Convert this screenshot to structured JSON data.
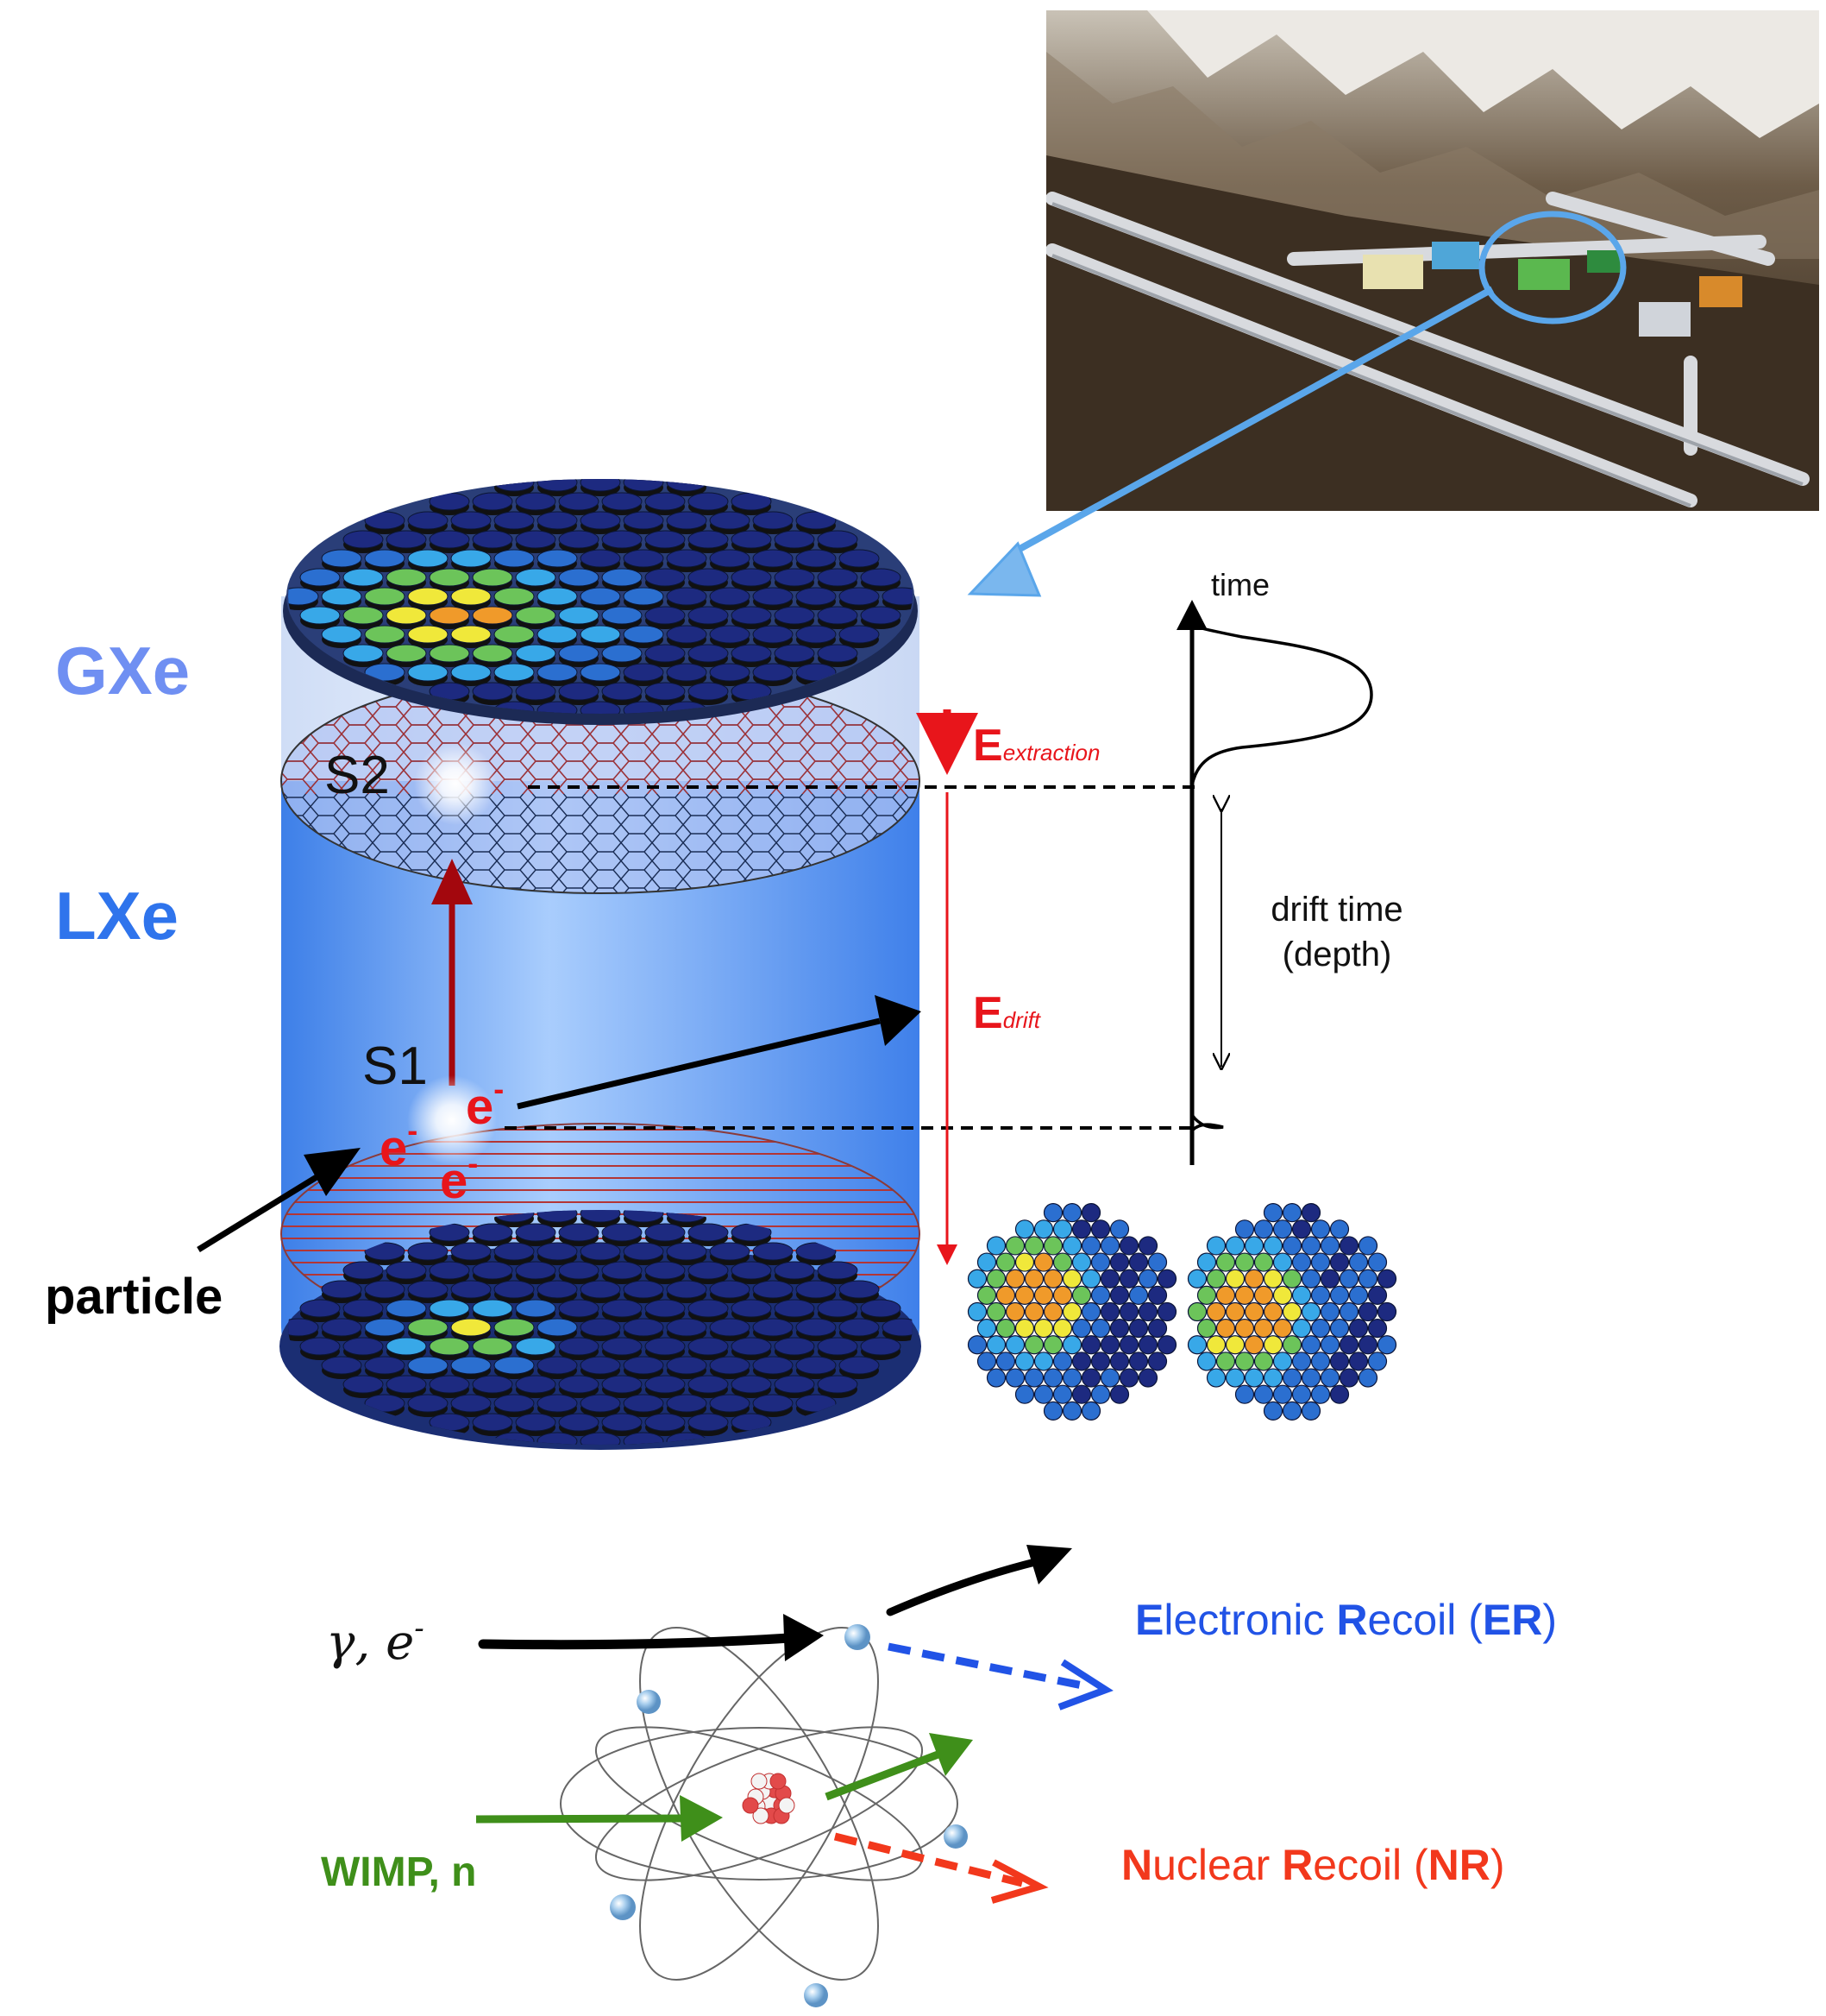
{
  "labels": {
    "gxe": "GXe",
    "lxe": "LXe",
    "s2": "S2",
    "s1": "S1",
    "electron": "e",
    "electron_charge": "-",
    "particle": "particle",
    "e_extraction_main": "E",
    "e_extraction_sub": "extraction",
    "e_drift_main": "E",
    "e_drift_sub": "drift",
    "time_axis": "time",
    "drift_time_line1": "drift time",
    "drift_time_line2": "(depth)"
  },
  "interactions": {
    "incoming_er": "γ, e",
    "incoming_er_sup": "-",
    "incoming_nr": "WIMP, n",
    "er_parts": [
      {
        "t": "E",
        "b": true
      },
      {
        "t": "lectronic ",
        "b": false
      },
      {
        "t": "R",
        "b": true
      },
      {
        "t": "ecoil (",
        "b": false
      },
      {
        "t": "ER",
        "b": true
      },
      {
        "t": ")",
        "b": false
      }
    ],
    "nr_parts": [
      {
        "t": "N",
        "b": true
      },
      {
        "t": "uclear ",
        "b": false
      },
      {
        "t": "R",
        "b": true
      },
      {
        "t": "ecoil (",
        "b": false
      },
      {
        "t": "NR",
        "b": true
      },
      {
        "t": ")",
        "b": false
      }
    ]
  },
  "colors": {
    "gxe_label": "#6f8ff2",
    "lxe_label": "#2f74ec",
    "signal_red": "#e8151b",
    "er_blue": "#2153e6",
    "nr_red": "#f2381c",
    "wimp_green": "#3f8f1a",
    "liquid_blue": "#5a98f0"
  }
}
